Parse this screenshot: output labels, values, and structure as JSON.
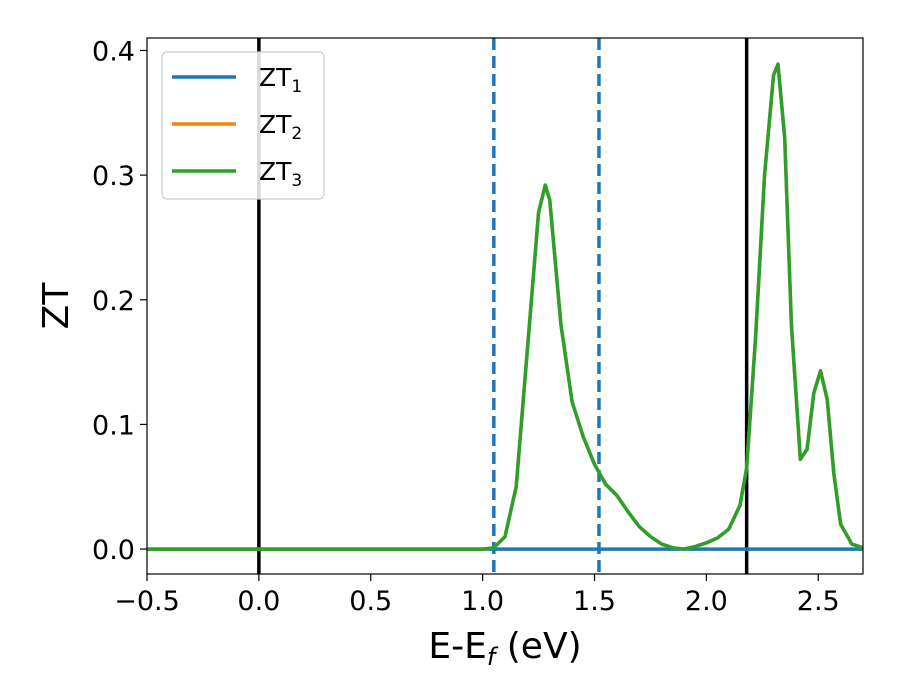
{
  "chart_data": {
    "type": "line",
    "title": "",
    "xlabel": "E-E",
    "xlabel_sub": "f",
    "xlabel_unit": " (eV)",
    "ylabel": "ZT",
    "xlim": [
      -0.5,
      2.7
    ],
    "ylim": [
      -0.02,
      0.41
    ],
    "xticks": [
      -0.5,
      0.0,
      0.5,
      1.0,
      1.5,
      2.0,
      2.5
    ],
    "xtick_labels": [
      "−0.5",
      "0.0",
      "0.5",
      "1.0",
      "1.5",
      "2.0",
      "2.5"
    ],
    "yticks": [
      0.0,
      0.1,
      0.2,
      0.3,
      0.4
    ],
    "ytick_labels": [
      "0.0",
      "0.1",
      "0.2",
      "0.3",
      "0.4"
    ],
    "grid": false,
    "legend_position": "top-left",
    "vlines": [
      {
        "x": 0.0,
        "style": "solid",
        "color": "#000000"
      },
      {
        "x": 2.18,
        "style": "solid",
        "color": "#000000"
      },
      {
        "x": 1.05,
        "style": "dashed",
        "color": "#1f77b4"
      },
      {
        "x": 1.52,
        "style": "dashed",
        "color": "#1f77b4"
      }
    ],
    "series": [
      {
        "name": "ZT",
        "name_sub": "1",
        "color": "#1f77b4",
        "x": [
          -0.5,
          2.7
        ],
        "y": [
          0.0,
          0.0
        ]
      },
      {
        "name": "ZT",
        "name_sub": "2",
        "color": "#ff7f0e",
        "x": [
          -0.5,
          1.0,
          1.05,
          1.1,
          1.15,
          1.2,
          1.25,
          1.28,
          1.3,
          1.35,
          1.4,
          1.45,
          1.5,
          1.55,
          1.6,
          1.65,
          1.7,
          1.75,
          1.8,
          1.85,
          1.9,
          1.95,
          2.0,
          2.05,
          2.1,
          2.15,
          2.18,
          2.22,
          2.26,
          2.3,
          2.32,
          2.35,
          2.38,
          2.42,
          2.45,
          2.48,
          2.51,
          2.54,
          2.57,
          2.6,
          2.65,
          2.7
        ],
        "y": [
          0.0,
          0.0,
          0.001,
          0.01,
          0.05,
          0.16,
          0.27,
          0.292,
          0.28,
          0.18,
          0.118,
          0.09,
          0.068,
          0.052,
          0.043,
          0.03,
          0.018,
          0.01,
          0.004,
          0.001,
          0.0,
          0.002,
          0.005,
          0.009,
          0.016,
          0.035,
          0.065,
          0.17,
          0.3,
          0.38,
          0.389,
          0.33,
          0.18,
          0.072,
          0.08,
          0.125,
          0.143,
          0.12,
          0.06,
          0.02,
          0.004,
          0.001
        ]
      },
      {
        "name": "ZT",
        "name_sub": "3",
        "color": "#2ca02c",
        "x": [
          -0.5,
          1.0,
          1.05,
          1.1,
          1.15,
          1.2,
          1.25,
          1.28,
          1.3,
          1.35,
          1.4,
          1.45,
          1.5,
          1.55,
          1.6,
          1.65,
          1.7,
          1.75,
          1.8,
          1.85,
          1.9,
          1.95,
          2.0,
          2.05,
          2.1,
          2.15,
          2.18,
          2.22,
          2.26,
          2.3,
          2.32,
          2.35,
          2.38,
          2.42,
          2.45,
          2.48,
          2.51,
          2.54,
          2.57,
          2.6,
          2.65,
          2.7
        ],
        "y": [
          0.0,
          0.0,
          0.001,
          0.01,
          0.05,
          0.16,
          0.27,
          0.292,
          0.28,
          0.18,
          0.118,
          0.09,
          0.068,
          0.052,
          0.043,
          0.03,
          0.018,
          0.01,
          0.004,
          0.001,
          0.0,
          0.002,
          0.005,
          0.009,
          0.016,
          0.035,
          0.065,
          0.17,
          0.3,
          0.38,
          0.389,
          0.33,
          0.18,
          0.072,
          0.08,
          0.125,
          0.143,
          0.12,
          0.06,
          0.02,
          0.004,
          0.001
        ]
      }
    ]
  }
}
